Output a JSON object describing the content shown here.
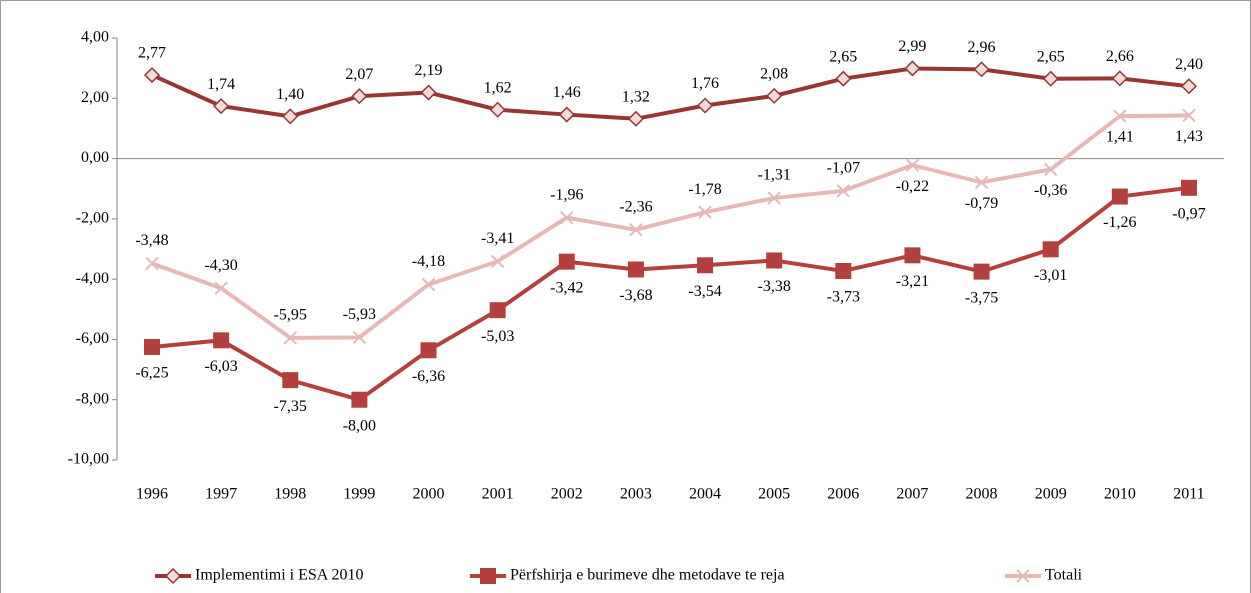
{
  "chart_data": {
    "type": "line",
    "categories": [
      "1996",
      "1997",
      "1998",
      "1999",
      "2000",
      "2001",
      "2002",
      "2003",
      "2004",
      "2005",
      "2006",
      "2007",
      "2008",
      "2009",
      "2010",
      "2011"
    ],
    "ylim": [
      -10,
      4
    ],
    "yticks": [
      {
        "value": -10,
        "label": "-10,00"
      },
      {
        "value": -8,
        "label": "-8,00"
      },
      {
        "value": -6,
        "label": "-6,00"
      },
      {
        "value": -4,
        "label": "-4,00"
      },
      {
        "value": -2,
        "label": "-2,00"
      },
      {
        "value": 0,
        "label": "0,00"
      },
      {
        "value": 2,
        "label": "2,00"
      },
      {
        "value": 4,
        "label": "4,00"
      }
    ],
    "series": [
      {
        "name": "Implementimi i ESA 2010",
        "color": "#953735",
        "marker": "diamond",
        "values": [
          2.77,
          1.74,
          1.4,
          2.07,
          2.19,
          1.62,
          1.46,
          1.32,
          1.76,
          2.08,
          2.65,
          2.99,
          2.96,
          2.65,
          2.66,
          2.4
        ],
        "value_labels": [
          "2,77",
          "1,74",
          "1,40",
          "2,07",
          "2,19",
          "1,62",
          "1,46",
          "1,32",
          "1,76",
          "2,08",
          "2,65",
          "2,99",
          "2,96",
          "2,65",
          "2,66",
          "2,40"
        ]
      },
      {
        "name": "Përfshirja e burimeve dhe metodave te reja",
        "color": "#b3403d",
        "marker": "square",
        "values": [
          -6.25,
          -6.03,
          -7.35,
          -8.0,
          -6.36,
          -5.03,
          -3.42,
          -3.68,
          -3.54,
          -3.38,
          -3.73,
          -3.21,
          -3.75,
          -3.01,
          -1.26,
          -0.97
        ],
        "value_labels": [
          "-6,25",
          "-6,03",
          "-7,35",
          "-8,00",
          "-6,36",
          "-5,03",
          "-3,42",
          "-3,68",
          "-3,54",
          "-3,38",
          "-3,73",
          "-3,21",
          "-3,75",
          "-3,01",
          "-1,26",
          "-0,97"
        ]
      },
      {
        "name": "Totali",
        "color": "#e6b9b8",
        "marker": "x",
        "values": [
          -3.48,
          -4.3,
          -5.95,
          -5.93,
          -4.18,
          -3.41,
          -1.96,
          -2.36,
          -1.78,
          -1.31,
          -1.07,
          -0.22,
          -0.79,
          -0.36,
          1.41,
          1.43
        ],
        "value_labels": [
          "-3,48",
          "-4,30",
          "-5,95",
          "-5,93",
          "-4,18",
          "-3,41",
          "-1,96",
          "-2,36",
          "-1,78",
          "-1,31",
          "-1,07",
          "-0,22",
          "-0,79",
          "-0,36",
          "1,41",
          "1,43"
        ]
      }
    ]
  }
}
